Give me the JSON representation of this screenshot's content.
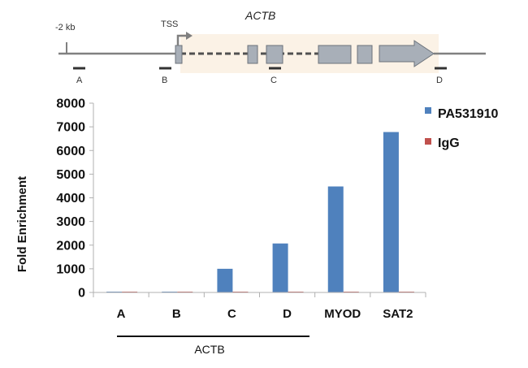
{
  "gene_diagram": {
    "gene_name": "ACTB",
    "upstream_label": "-2 kb",
    "tss_label": "TSS",
    "region_labels": [
      "A",
      "B",
      "C",
      "D"
    ]
  },
  "chart_data": {
    "type": "bar",
    "ylabel": "Fold Enrichment",
    "ylim": [
      0,
      8000
    ],
    "yticks": [
      0,
      1000,
      2000,
      3000,
      4000,
      5000,
      6000,
      7000,
      8000
    ],
    "categories": [
      "A",
      "B",
      "C",
      "D",
      "MYOD",
      "SAT2"
    ],
    "series": [
      {
        "name": "PA531910",
        "color": "#4F81BD",
        "values": [
          25,
          25,
          1000,
          2070,
          4480,
          6780
        ]
      },
      {
        "name": "IgG",
        "color": "#C0504D",
        "values": [
          15,
          15,
          20,
          20,
          20,
          20
        ]
      }
    ],
    "group_label": "ACTB",
    "legend_position": "top-right",
    "grid": false
  }
}
